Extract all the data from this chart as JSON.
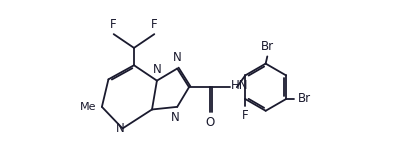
{
  "background_color": "#ffffff",
  "line_color": "#1a1a2e",
  "text_color": "#1a1a2e",
  "figsize": [
    3.99,
    1.6
  ],
  "dpi": 100,
  "xlim": [
    -0.3,
    7.3
  ],
  "ylim": [
    0.0,
    4.8
  ],
  "fontsize": 8.5,
  "lw": 1.3
}
